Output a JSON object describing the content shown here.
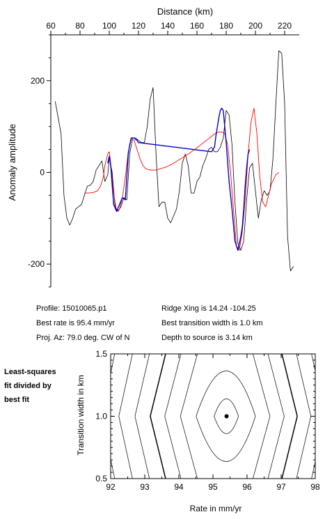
{
  "chart_data": [
    {
      "type": "line",
      "xlabel": "Distance (km)",
      "ylabel": "Anomaly amplitude",
      "xlim": [
        60,
        230
      ],
      "ylim": [
        -250,
        300
      ],
      "x_ticks": [
        "60",
        "80",
        "100",
        "120",
        "140",
        "160",
        "180",
        "200",
        "220"
      ],
      "y_ticks": [
        "200",
        "0",
        "-200"
      ],
      "x_tick_values": [
        60,
        80,
        100,
        120,
        140,
        160,
        180,
        200,
        220
      ],
      "y_tick_values": [
        200,
        0,
        -200
      ],
      "series": [
        {
          "color": "#000000",
          "x": [
            63,
            65,
            67,
            69,
            71,
            73,
            75,
            77,
            79,
            81,
            83,
            85,
            87,
            89,
            91,
            93,
            95,
            97,
            99,
            100,
            102,
            104,
            106,
            108,
            110,
            112,
            114,
            116,
            118,
            120,
            122,
            124,
            126,
            128,
            130,
            132,
            134,
            136,
            138,
            140,
            142,
            144,
            146,
            148,
            150,
            152,
            154,
            156,
            158,
            160,
            162,
            164,
            166,
            168,
            170,
            172,
            174,
            176,
            178,
            180,
            182,
            184,
            186,
            188,
            190,
            192,
            194,
            196,
            198,
            200,
            202,
            204,
            206,
            208,
            210,
            212,
            214,
            216,
            218,
            220,
            222,
            224,
            226
          ],
          "y": [
            155,
            120,
            85,
            -50,
            -100,
            -115,
            -100,
            -80,
            -75,
            -70,
            -50,
            -30,
            -28,
            -20,
            5,
            15,
            25,
            -20,
            -5,
            35,
            0,
            -75,
            -85,
            -75,
            -55,
            -60,
            40,
            75,
            75,
            70,
            65,
            65,
            100,
            160,
            185,
            40,
            -75,
            -65,
            -65,
            -100,
            -110,
            -95,
            -80,
            -40,
            20,
            40,
            15,
            -45,
            -45,
            -20,
            -10,
            15,
            30,
            50,
            55,
            45,
            45,
            55,
            75,
            135,
            125,
            60,
            -65,
            -155,
            -170,
            -150,
            -60,
            10,
            20,
            -40,
            -100,
            -60,
            -40,
            -50,
            -40,
            30,
            150,
            265,
            260,
            150,
            -140,
            -215,
            -205
          ]
        },
        {
          "color": "#ff0000",
          "x": [
            83,
            86,
            89,
            92,
            94,
            96,
            97,
            99,
            100,
            101,
            103,
            105,
            107,
            109,
            111,
            113,
            115,
            117,
            119,
            121,
            123,
            125,
            127,
            129,
            131,
            133,
            135,
            137,
            139,
            141,
            143,
            145,
            147,
            149,
            151,
            153,
            155,
            157,
            159,
            161,
            163,
            165,
            167,
            169,
            171,
            173,
            175,
            177,
            179,
            181,
            183,
            185,
            187,
            189,
            191,
            193,
            195,
            197,
            199,
            201,
            203,
            205,
            207,
            209,
            211,
            214,
            216
          ],
          "y": [
            -45,
            -45,
            -44,
            -40,
            -30,
            -10,
            15,
            40,
            45,
            20,
            -45,
            -85,
            -80,
            -55,
            -10,
            45,
            72,
            70,
            50,
            30,
            15,
            8,
            6,
            5,
            5,
            6,
            8,
            10,
            12,
            15,
            18,
            22,
            26,
            30,
            34,
            38,
            42,
            47,
            51,
            56,
            61,
            66,
            71,
            76,
            81,
            86,
            88,
            88,
            85,
            60,
            0,
            -80,
            -160,
            -170,
            -130,
            -60,
            40,
            110,
            140,
            85,
            -10,
            -65,
            -75,
            -50,
            -25,
            -5,
            0
          ]
        },
        {
          "color": "#0000cc",
          "x": [
            99,
            100,
            101,
            103,
            105,
            107,
            109,
            111,
            113,
            114,
            115,
            116,
            117,
            118,
            119,
            120,
            170,
            172,
            173,
            175,
            176,
            177,
            178,
            179,
            180,
            182,
            184,
            186,
            188,
            190,
            191,
            192,
            193,
            194,
            195,
            196
          ],
          "y": [
            20,
            35,
            15,
            -70,
            -85,
            -70,
            -55,
            -60,
            40,
            60,
            75,
            75,
            75,
            72,
            70,
            65,
            45,
            55,
            80,
            120,
            135,
            140,
            135,
            100,
            65,
            -20,
            -80,
            -150,
            -170,
            -140,
            -120,
            -80,
            -30,
            10,
            40,
            50
          ]
        }
      ]
    },
    {
      "type": "contour",
      "xlabel": "Rate in mm/yr",
      "ylabel": "Transition width in km",
      "xlim": [
        92,
        98
      ],
      "ylim": [
        0.5,
        1.5
      ],
      "x_ticks": [
        "92",
        "93",
        "94",
        "95",
        "96",
        "97",
        "98"
      ],
      "y_ticks": [
        "0.5",
        "1.0",
        "1.5"
      ],
      "x_tick_values": [
        92,
        93,
        94,
        95,
        96,
        97,
        98
      ],
      "y_tick_values": [
        0.5,
        1.0,
        1.5
      ],
      "best_fit": {
        "rate": 95.4,
        "width": 1.0
      },
      "contour_offsets": [
        0.35,
        0.82,
        1.2,
        1.55,
        1.85,
        2.15,
        2.45,
        2.75,
        3.05,
        3.35,
        3.65,
        3.95,
        4.25
      ],
      "bold_levels": [
        4,
        8,
        12
      ]
    }
  ],
  "info": {
    "profile": "Profile: 15010065.p1",
    "ridge": "Ridge Xing is 14.24 -104.25",
    "rate": "Best rate is 95.4 mm/yr",
    "width": "Best transition width is 1.0 km",
    "az": "Proj. Az: 79.0 deg. CW of N",
    "depth": "Depth to source is   3.14 km"
  },
  "side_label": [
    "Least-squares",
    "fit divided by",
    "best fit"
  ]
}
